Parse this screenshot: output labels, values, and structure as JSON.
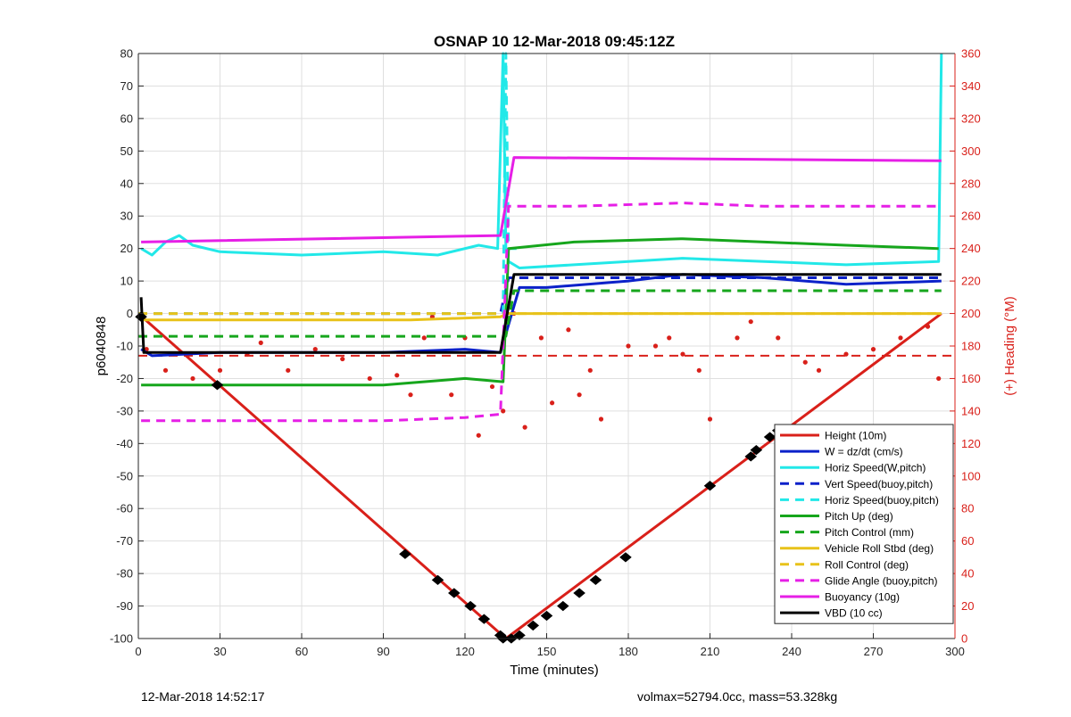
{
  "chart_data": {
    "type": "line",
    "title": "OSNAP 10 12-Mar-2018 09:45:12Z",
    "xlabel": "Time (minutes)",
    "ylabel": "p6040848",
    "y2label": "(+) Heading (°M)",
    "xlim": [
      0,
      300
    ],
    "ylim": [
      -100,
      80
    ],
    "y2lim": [
      0,
      360
    ],
    "xticks": [
      0,
      30,
      60,
      90,
      120,
      150,
      180,
      210,
      240,
      270,
      300
    ],
    "yticks": [
      -100,
      -90,
      -80,
      -70,
      -60,
      -50,
      -40,
      -30,
      -20,
      -10,
      0,
      10,
      20,
      30,
      40,
      50,
      60,
      70,
      80
    ],
    "y2ticks": [
      0,
      20,
      40,
      60,
      80,
      100,
      120,
      140,
      160,
      180,
      200,
      220,
      240,
      260,
      280,
      300,
      320,
      340,
      360
    ],
    "grid": true,
    "legend_position": "bottom-right",
    "colors": {
      "red": "#d9201a",
      "blue": "#0b21c9",
      "cyan": "#22e8e8",
      "green": "#16a61c",
      "yellow": "#e8c21a",
      "magenta": "#e61fe6",
      "black": "#000000"
    },
    "series": [
      {
        "name": "Height (10m)",
        "color": "#d9201a",
        "style": "solid",
        "x": [
          0,
          135,
          295
        ],
        "y": [
          0,
          -100,
          0
        ]
      },
      {
        "name": "W = dz/dt (cm/s)",
        "color": "#0b21c9",
        "style": "solid",
        "x": [
          1,
          5,
          30,
          60,
          90,
          120,
          133,
          140,
          150,
          180,
          200,
          230,
          260,
          295
        ],
        "y": [
          -11,
          -13,
          -12,
          -12,
          -12,
          -11,
          -12,
          8,
          8,
          10,
          12,
          11,
          9,
          10
        ]
      },
      {
        "name": "Horiz Speed(W,pitch)",
        "color": "#22e8e8",
        "style": "solid",
        "x": [
          1,
          5,
          10,
          15,
          20,
          30,
          60,
          90,
          110,
          125,
          132,
          134,
          135,
          136,
          140,
          160,
          200,
          230,
          260,
          294,
          295
        ],
        "y": [
          20,
          18,
          22,
          24,
          21,
          19,
          18,
          19,
          18,
          21,
          20,
          80,
          20,
          16,
          14,
          15,
          17,
          16,
          15,
          16,
          80
        ]
      },
      {
        "name": "Vert Speed(buoy,pitch)",
        "color": "#0b21c9",
        "style": "dashed",
        "x": [
          0,
          133,
          136,
          295
        ],
        "y": [
          0,
          0,
          11,
          11
        ]
      },
      {
        "name": "Horiz Speed(buoy,pitch)",
        "color": "#22e8e8",
        "style": "dashed",
        "x": [
          0,
          134,
          135,
          136,
          140
        ],
        "y": [
          0,
          0,
          80,
          20,
          20
        ]
      },
      {
        "name": "Pitch Up (deg)",
        "color": "#16a61c",
        "style": "solid",
        "x": [
          1,
          30,
          60,
          90,
          120,
          134,
          136,
          160,
          200,
          230,
          260,
          294
        ],
        "y": [
          -22,
          -22,
          -22,
          -22,
          -20,
          -21,
          20,
          22,
          23,
          22,
          21,
          20
        ]
      },
      {
        "name": "Pitch Control (mm)",
        "color": "#16a61c",
        "style": "dashed",
        "x": [
          0,
          135,
          138,
          295
        ],
        "y": [
          -7,
          -7,
          7,
          7
        ]
      },
      {
        "name": "Vehicle Roll Stbd (deg)",
        "color": "#e8c21a",
        "style": "solid",
        "x": [
          1,
          30,
          60,
          100,
          133,
          136,
          160,
          200,
          260,
          295
        ],
        "y": [
          -2,
          -2,
          -2,
          -2,
          -1,
          0,
          0,
          0,
          0,
          0
        ]
      },
      {
        "name": "Roll Control (deg)",
        "color": "#e8c21a",
        "style": "dashed",
        "x": [
          0,
          295
        ],
        "y": [
          0,
          0
        ]
      },
      {
        "name": "Glide Angle (buoy,pitch)",
        "color": "#e61fe6",
        "style": "dashed",
        "x": [
          1,
          30,
          60,
          90,
          120,
          133,
          136,
          160,
          200,
          230,
          260,
          294
        ],
        "y": [
          -33,
          -33,
          -33,
          -33,
          -32,
          -31,
          33,
          33,
          34,
          33,
          33,
          33
        ]
      },
      {
        "name": "Buoyancy (10g)",
        "color": "#e61fe6",
        "style": "solid",
        "x": [
          1,
          133,
          138,
          295
        ],
        "y": [
          22,
          24,
          48,
          47
        ]
      },
      {
        "name": "VBD (10 cc)",
        "color": "#000000",
        "style": "solid",
        "x": [
          1,
          2,
          133,
          138,
          295
        ],
        "y": [
          5,
          -12,
          -12,
          12,
          12
        ]
      }
    ],
    "heading_series": {
      "name": "Heading",
      "axis": "right",
      "color": "#d9201a",
      "style": "dots",
      "reference_deg": 174,
      "x": [
        3,
        10,
        20,
        30,
        40,
        45,
        55,
        65,
        75,
        85,
        95,
        100,
        105,
        108,
        115,
        120,
        125,
        130,
        134,
        138,
        142,
        148,
        152,
        158,
        162,
        166,
        170,
        180,
        190,
        195,
        200,
        206,
        210,
        220,
        225,
        235,
        245,
        250,
        260,
        270,
        280,
        290,
        294
      ],
      "y": [
        178,
        165,
        160,
        165,
        175,
        182,
        165,
        178,
        172,
        160,
        162,
        150,
        185,
        198,
        150,
        185,
        125,
        155,
        140,
        200,
        130,
        185,
        145,
        190,
        150,
        165,
        135,
        180,
        180,
        185,
        175,
        165,
        135,
        185,
        195,
        185,
        170,
        165,
        175,
        178,
        185,
        192,
        160
      ]
    },
    "markers": {
      "series": "Height (10m)",
      "x": [
        1,
        29,
        98,
        110,
        116,
        122,
        127,
        133,
        134,
        137,
        140,
        145,
        150,
        156,
        162,
        168,
        179,
        210,
        225,
        227,
        232,
        235
      ],
      "y": [
        -1,
        -22,
        -74,
        -82,
        -86,
        -90,
        -94,
        -99,
        -100,
        -100,
        -99,
        -96,
        -93,
        -90,
        -86,
        -82,
        -75,
        -53,
        -44,
        -42,
        -38,
        -36
      ]
    },
    "legend": [
      {
        "label": "Height (10m)",
        "color": "#d9201a",
        "style": "solid"
      },
      {
        "label": "W = dz/dt (cm/s)",
        "color": "#0b21c9",
        "style": "solid"
      },
      {
        "label": "Horiz Speed(W,pitch)",
        "color": "#22e8e8",
        "style": "solid"
      },
      {
        "label": "Vert Speed(buoy,pitch)",
        "color": "#0b21c9",
        "style": "dashed"
      },
      {
        "label": "Horiz Speed(buoy,pitch)",
        "color": "#22e8e8",
        "style": "dashed"
      },
      {
        "label": "Pitch Up (deg)",
        "color": "#16a61c",
        "style": "solid"
      },
      {
        "label": "Pitch Control (mm)",
        "color": "#16a61c",
        "style": "dashed"
      },
      {
        "label": "Vehicle Roll Stbd (deg)",
        "color": "#e8c21a",
        "style": "solid"
      },
      {
        "label": "Roll Control (deg)",
        "color": "#e8c21a",
        "style": "dashed"
      },
      {
        "label": "Glide Angle (buoy,pitch)",
        "color": "#e61fe6",
        "style": "dashed"
      },
      {
        "label": "Buoyancy (10g)",
        "color": "#e61fe6",
        "style": "solid"
      },
      {
        "label": "VBD (10 cc)",
        "color": "#000000",
        "style": "solid"
      }
    ]
  },
  "footer": {
    "timestamp": "12-Mar-2018 14:52:17",
    "stats": "volmax=52794.0cc, mass=53.328kg"
  }
}
